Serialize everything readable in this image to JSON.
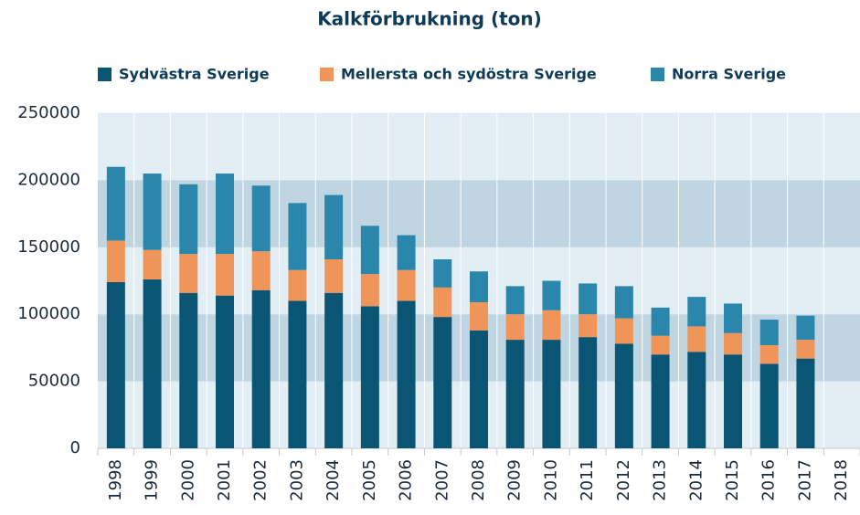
{
  "chart_data": {
    "type": "stacked-bar",
    "title": "Kalkförbrukning (ton)",
    "categories": [
      "1998",
      "1999",
      "2000",
      "2001",
      "2002",
      "2003",
      "2004",
      "2005",
      "2006",
      "2007",
      "2008",
      "2009",
      "2010",
      "2011",
      "2012",
      "2013",
      "2014",
      "2015",
      "2016",
      "2017",
      "2018"
    ],
    "series": [
      {
        "name": "Sydvästra Sverige",
        "color": "#0b5574",
        "values": [
          124000,
          126000,
          116000,
          114000,
          118000,
          110000,
          116000,
          106000,
          110000,
          98000,
          88000,
          81000,
          81000,
          83000,
          78000,
          70000,
          72000,
          70000,
          63000,
          67000,
          null
        ]
      },
      {
        "name": "Mellersta och sydöstra Sverige",
        "color": "#f0955a",
        "values": [
          31000,
          22000,
          29000,
          31000,
          29000,
          23000,
          25000,
          24000,
          23000,
          22000,
          21000,
          19000,
          22000,
          17000,
          19000,
          14000,
          19000,
          16000,
          14000,
          14000,
          null
        ]
      },
      {
        "name": "Norra Sverige",
        "color": "#2a86ab",
        "values": [
          55000,
          57000,
          52000,
          60000,
          49000,
          50000,
          48000,
          36000,
          26000,
          21000,
          23000,
          21000,
          22000,
          23000,
          24000,
          21000,
          22000,
          22000,
          19000,
          18000,
          null
        ]
      }
    ],
    "ylim": [
      0,
      250000
    ],
    "yticks": [
      0,
      50000,
      100000,
      150000,
      200000,
      250000
    ],
    "grid": true,
    "legend": "top"
  }
}
